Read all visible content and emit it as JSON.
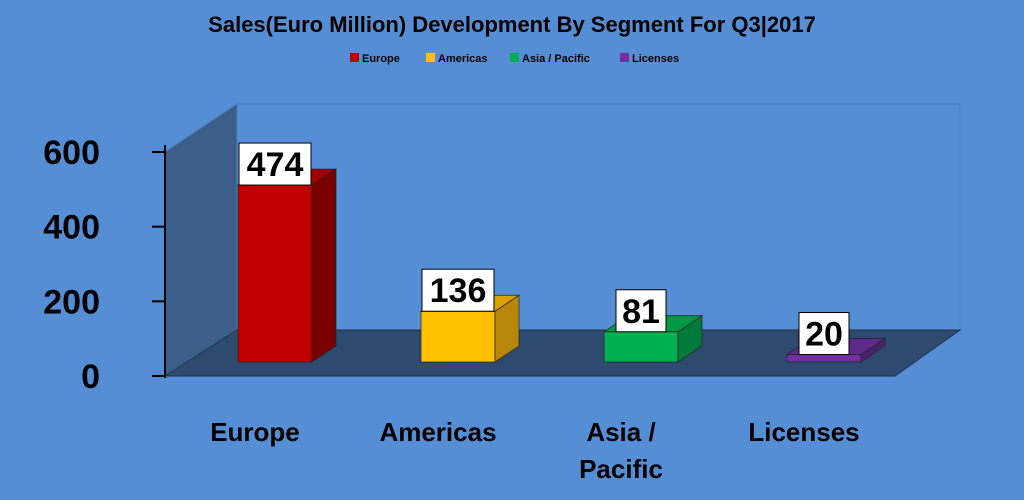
{
  "chart_data": {
    "type": "bar",
    "title": "Sales(Euro Million) Development By Segment For Q3|2017",
    "categories": [
      "Europe",
      "Americas",
      "Asia / Pacific",
      "Licenses"
    ],
    "category_lines": [
      [
        "Europe"
      ],
      [
        "Americas"
      ],
      [
        "Asia /",
        "Pacific"
      ],
      [
        "Licenses"
      ]
    ],
    "values": [
      474,
      136,
      81,
      20
    ],
    "legend": [
      "Europe",
      "Americas",
      "Asia / Pacific",
      "Licenses"
    ],
    "colors": [
      "#c00000",
      "#ffc000",
      "#00b050",
      "#7030a0"
    ],
    "yticks": [
      0,
      200,
      400,
      600
    ],
    "ylim": [
      0,
      600
    ],
    "legend_position": "top-center",
    "grid": false,
    "three_d": true
  }
}
